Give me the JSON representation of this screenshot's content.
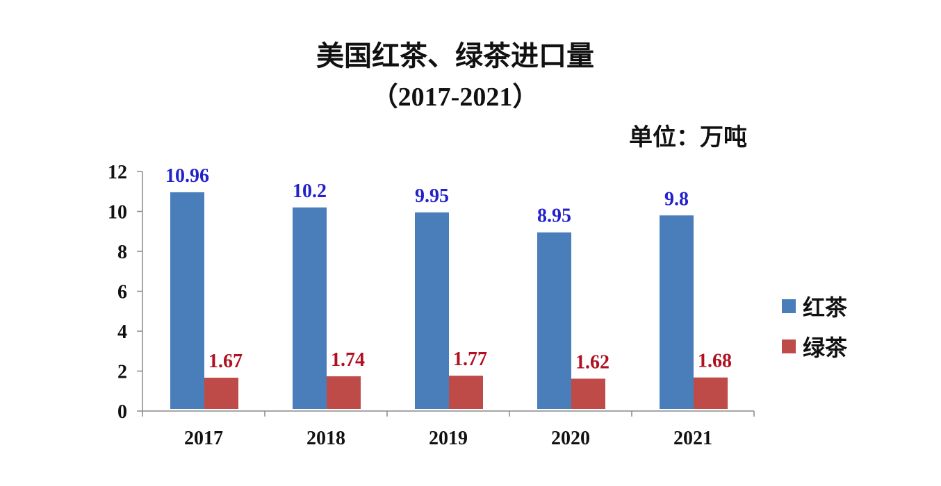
{
  "chart_data": {
    "type": "bar",
    "title": "美国红茶、绿茶进口量",
    "subtitle": "（2017-2021）",
    "unit_label": "单位：万吨",
    "categories": [
      "2017",
      "2018",
      "2019",
      "2020",
      "2021"
    ],
    "series": [
      {
        "name": "红茶",
        "values": [
          10.96,
          10.2,
          9.95,
          8.95,
          9.8
        ],
        "labels": [
          "10.96",
          "10.2",
          "9.95",
          "8.95",
          "9.8"
        ],
        "color": "#4a7ebb",
        "label_color": "#2222cc"
      },
      {
        "name": "绿茶",
        "values": [
          1.67,
          1.74,
          1.77,
          1.62,
          1.68
        ],
        "labels": [
          "1.67",
          "1.74",
          "1.77",
          "1.62",
          "1.68"
        ],
        "color": "#be4b48",
        "label_color": "#b01020"
      }
    ],
    "yticks": [
      "0",
      "2",
      "4",
      "6",
      "8",
      "10",
      "12"
    ],
    "ylim": [
      0,
      12
    ],
    "grid": false,
    "legend_position": "right"
  }
}
